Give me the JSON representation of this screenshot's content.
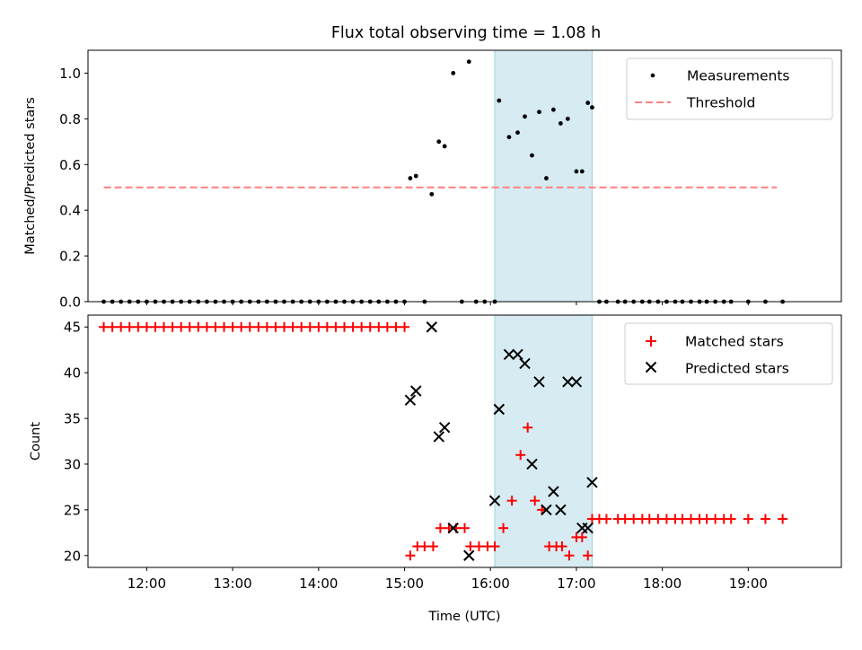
{
  "title": "Flux total observing time = 1.08 h",
  "colors": {
    "measurement": "#000000",
    "threshold": "#ff7f7f",
    "matched": "#ff0000",
    "predicted": "#000000",
    "span": "#add8e6"
  },
  "chart_data": [
    {
      "type": "scatter",
      "ylabel": "Matched/Predicted stars",
      "xlim": [
        "11:19",
        "20:05"
      ],
      "ylim": [
        0,
        1.1
      ],
      "yticks": [
        "0.0",
        "0.2",
        "0.4",
        "0.6",
        "0.8",
        "1.0"
      ],
      "ytick_values": [
        0,
        0.2,
        0.4,
        0.6,
        0.8,
        1.0
      ],
      "grid": false,
      "legend_position": "top-right",
      "legend": [
        "Measurements",
        "Threshold"
      ],
      "highlight_span": [
        "16:03",
        "17:11"
      ],
      "threshold": {
        "name": "Threshold",
        "value": 0.5,
        "x": [
          "11:30",
          "19:20"
        ]
      },
      "series": [
        {
          "name": "Measurements",
          "x": [
            "11:30",
            "11:36",
            "11:42",
            "11:48",
            "11:54",
            "12:00",
            "12:06",
            "12:12",
            "12:18",
            "12:24",
            "12:30",
            "12:36",
            "12:42",
            "12:48",
            "12:54",
            "13:00",
            "13:06",
            "13:12",
            "13:18",
            "13:24",
            "13:30",
            "13:36",
            "13:42",
            "13:48",
            "13:54",
            "14:00",
            "14:06",
            "14:12",
            "14:18",
            "14:24",
            "14:30",
            "14:36",
            "14:42",
            "14:48",
            "14:54",
            "15:00",
            "15:04",
            "15:08",
            "15:14",
            "15:19",
            "15:24",
            "15:28",
            "15:34",
            "15:40",
            "15:45",
            "15:50",
            "15:56",
            "16:03",
            "16:06",
            "16:13",
            "16:19",
            "16:24",
            "16:29",
            "16:34",
            "16:39",
            "16:44",
            "16:49",
            "16:54",
            "17:00",
            "17:04",
            "17:08",
            "17:11",
            "17:16",
            "17:21",
            "17:29",
            "17:34",
            "17:40",
            "17:46",
            "17:51",
            "17:57",
            "18:03",
            "18:09",
            "18:14",
            "18:20",
            "18:26",
            "18:31",
            "18:37",
            "18:43",
            "18:48",
            "19:00",
            "19:12",
            "19:24"
          ],
          "y": [
            0,
            0,
            0,
            0,
            0,
            0,
            0,
            0,
            0,
            0,
            0,
            0,
            0,
            0,
            0,
            0,
            0,
            0,
            0,
            0,
            0,
            0,
            0,
            0,
            0,
            0,
            0,
            0,
            0,
            0,
            0,
            0,
            0,
            0,
            0,
            0,
            0.54,
            0.55,
            0,
            0.47,
            0.7,
            0.68,
            1.0,
            0,
            1.05,
            0,
            0,
            0,
            0.88,
            0.72,
            0.74,
            0.81,
            0.64,
            0.83,
            0.54,
            0.84,
            0.78,
            0.8,
            0.57,
            0.57,
            0.87,
            0.85,
            0,
            0,
            0,
            0,
            0,
            0,
            0,
            0,
            0,
            0,
            0,
            0,
            0,
            0,
            0,
            0,
            0,
            0,
            0,
            0
          ]
        }
      ]
    },
    {
      "type": "scatter",
      "xlabel": "Time (UTC)",
      "ylabel": "Count",
      "xlim": [
        "11:19",
        "20:05"
      ],
      "xticks": [
        "12:00",
        "13:00",
        "14:00",
        "15:00",
        "16:00",
        "17:00",
        "18:00",
        "19:00"
      ],
      "ylim": [
        18.7,
        46.3
      ],
      "yticks": [
        "20",
        "25",
        "30",
        "35",
        "40",
        "45"
      ],
      "ytick_values": [
        20,
        25,
        30,
        35,
        40,
        45
      ],
      "grid": false,
      "legend_position": "top-right",
      "legend": [
        "Matched stars",
        "Predicted stars"
      ],
      "highlight_span": [
        "16:03",
        "17:11"
      ],
      "series": [
        {
          "name": "Matched stars",
          "x": [
            "11:30",
            "11:36",
            "11:42",
            "11:48",
            "11:54",
            "12:00",
            "12:06",
            "12:12",
            "12:18",
            "12:24",
            "12:30",
            "12:36",
            "12:42",
            "12:48",
            "12:54",
            "13:00",
            "13:06",
            "13:12",
            "13:18",
            "13:24",
            "13:30",
            "13:36",
            "13:42",
            "13:48",
            "13:54",
            "14:00",
            "14:06",
            "14:12",
            "14:18",
            "14:24",
            "14:30",
            "14:36",
            "14:42",
            "14:48",
            "14:54",
            "15:00",
            "15:04",
            "15:09",
            "15:14",
            "15:20",
            "15:25",
            "15:31",
            "15:36",
            "15:42",
            "15:46",
            "15:52",
            "15:58",
            "16:03",
            "16:09",
            "16:15",
            "16:21",
            "16:26",
            "16:31",
            "16:36",
            "16:41",
            "16:46",
            "16:50",
            "16:55",
            "17:00",
            "17:04",
            "17:08",
            "17:11",
            "17:16",
            "17:21",
            "17:29",
            "17:34",
            "17:40",
            "17:46",
            "17:51",
            "17:57",
            "18:03",
            "18:09",
            "18:14",
            "18:20",
            "18:26",
            "18:31",
            "18:37",
            "18:43",
            "18:48",
            "19:00",
            "19:12",
            "19:24"
          ],
          "y": [
            45,
            45,
            45,
            45,
            45,
            45,
            45,
            45,
            45,
            45,
            45,
            45,
            45,
            45,
            45,
            45,
            45,
            45,
            45,
            45,
            45,
            45,
            45,
            45,
            45,
            45,
            45,
            45,
            45,
            45,
            45,
            45,
            45,
            45,
            45,
            45,
            20,
            21,
            21,
            21,
            23,
            23,
            23,
            23,
            21,
            21,
            21,
            21,
            23,
            26,
            31,
            34,
            26,
            25,
            21,
            21,
            21,
            20,
            22,
            22,
            20,
            24,
            24,
            24,
            24,
            24,
            24,
            24,
            24,
            24,
            24,
            24,
            24,
            24,
            24,
            24,
            24,
            24,
            24,
            24,
            24,
            24
          ]
        },
        {
          "name": "Predicted stars",
          "x": [
            "15:04",
            "15:08",
            "15:19",
            "15:24",
            "15:28",
            "15:34",
            "15:45",
            "16:03",
            "16:06",
            "16:13",
            "16:19",
            "16:24",
            "16:29",
            "16:34",
            "16:39",
            "16:44",
            "16:49",
            "16:54",
            "17:00",
            "17:04",
            "17:08",
            "17:11"
          ],
          "y": [
            37,
            38,
            45,
            33,
            34,
            23,
            20,
            26,
            36,
            42,
            42,
            41,
            30,
            39,
            25,
            27,
            25,
            39,
            39,
            23,
            23,
            28
          ]
        }
      ]
    }
  ]
}
